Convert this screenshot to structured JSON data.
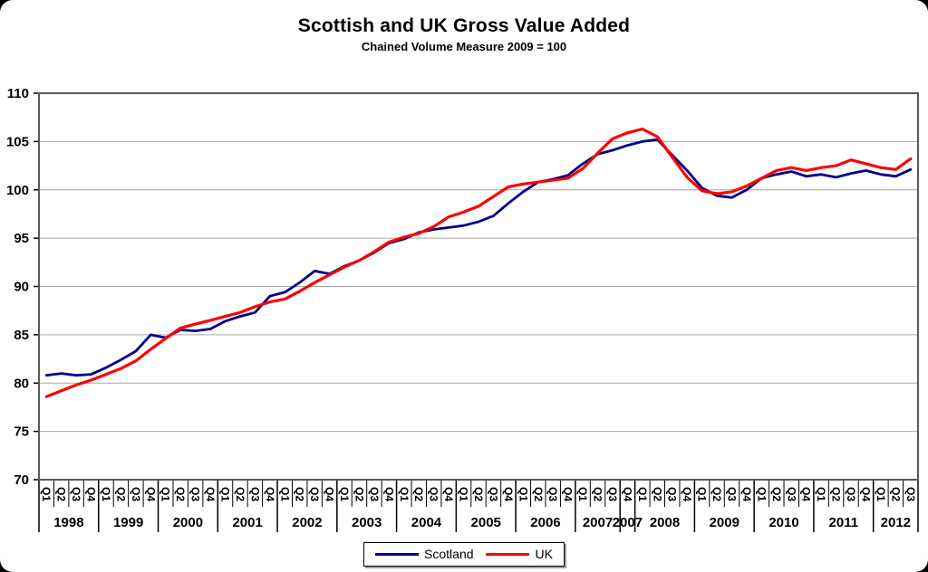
{
  "chart": {
    "title": "Scottish and UK Gross Value Added",
    "subtitle": "Chained Volume Measure 2009 = 100"
  },
  "legend": {
    "items": [
      {
        "label": "Scotland",
        "color": "#00008B"
      },
      {
        "label": "UK",
        "color": "#FF0000"
      }
    ]
  },
  "chart_data": {
    "type": "line",
    "title": "Scottish and UK Gross Value Added",
    "subtitle": "Chained Volume Measure 2009 = 100",
    "ylim": [
      70,
      110
    ],
    "yticks": [
      70,
      75,
      80,
      85,
      90,
      95,
      100,
      105,
      110
    ],
    "grid": true,
    "legend_position": "bottom-center",
    "axis_color": "#595959",
    "gridline_color": "#A6A6A6",
    "year_groups": [
      {
        "year": "1998",
        "quarters": [
          "Q1",
          "Q2",
          "Q3",
          "Q4"
        ]
      },
      {
        "year": "1999",
        "quarters": [
          "Q1",
          "Q2",
          "Q3",
          "Q4"
        ]
      },
      {
        "year": "2000",
        "quarters": [
          "Q1",
          "Q2",
          "Q3",
          "Q4"
        ]
      },
      {
        "year": "2001",
        "quarters": [
          "Q1",
          "Q2",
          "Q3",
          "Q4"
        ]
      },
      {
        "year": "2002",
        "quarters": [
          "Q1",
          "Q2",
          "Q3",
          "Q4"
        ]
      },
      {
        "year": "2003",
        "quarters": [
          "Q1",
          "Q2",
          "Q3",
          "Q4"
        ]
      },
      {
        "year": "2004",
        "quarters": [
          "Q1",
          "Q2",
          "Q3",
          "Q4"
        ]
      },
      {
        "year": "2005",
        "quarters": [
          "Q1",
          "Q2",
          "Q3",
          "Q4"
        ]
      },
      {
        "year": "2006",
        "quarters": [
          "Q1",
          "Q2",
          "Q3",
          "Q4"
        ]
      },
      {
        "year": "2007",
        "quarters": [
          "Q1",
          "Q2",
          "Q3"
        ]
      },
      {
        "year": "2007",
        "quarters": [
          "Q4"
        ]
      },
      {
        "year": "2008",
        "quarters": [
          "Q1",
          "Q2",
          "Q3",
          "Q4"
        ]
      },
      {
        "year": "2009",
        "quarters": [
          "Q1",
          "Q2",
          "Q3",
          "Q4"
        ]
      },
      {
        "year": "2010",
        "quarters": [
          "Q1",
          "Q2",
          "Q3",
          "Q4"
        ]
      },
      {
        "year": "2011",
        "quarters": [
          "Q1",
          "Q2",
          "Q3",
          "Q4"
        ]
      },
      {
        "year": "2012",
        "quarters": [
          "Q1",
          "Q2",
          "Q3"
        ]
      }
    ],
    "series": [
      {
        "name": "Scotland",
        "color": "#00008B",
        "stroke_width": 2.8,
        "values": [
          80.8,
          81.0,
          80.8,
          80.9,
          81.6,
          82.4,
          83.3,
          85.0,
          84.7,
          85.5,
          85.4,
          85.6,
          86.4,
          86.9,
          87.3,
          89.0,
          89.4,
          90.4,
          91.6,
          91.3,
          92.1,
          92.7,
          93.5,
          94.5,
          94.9,
          95.6,
          95.9,
          96.1,
          96.3,
          96.7,
          97.3,
          98.6,
          99.8,
          100.8,
          101.1,
          101.5,
          102.7,
          103.7,
          104.1,
          104.6,
          105.0,
          105.2,
          103.6,
          102.0,
          100.2,
          99.4,
          99.2,
          100.0,
          101.2,
          101.6,
          101.9,
          101.4,
          101.6,
          101.3,
          101.7,
          102.0,
          101.6,
          101.4,
          102.1
        ]
      },
      {
        "name": "UK",
        "color": "#FF0000",
        "stroke_width": 3.2,
        "values": [
          78.6,
          79.2,
          79.8,
          80.3,
          80.9,
          81.5,
          82.3,
          83.5,
          84.6,
          85.7,
          86.1,
          86.5,
          86.9,
          87.3,
          87.9,
          88.4,
          88.7,
          89.5,
          90.4,
          91.2,
          92.0,
          92.7,
          93.6,
          94.6,
          95.1,
          95.5,
          96.2,
          97.2,
          97.7,
          98.3,
          99.3,
          100.3,
          100.6,
          100.8,
          101.0,
          101.2,
          102.2,
          103.8,
          105.3,
          105.9,
          106.3,
          105.5,
          103.4,
          101.3,
          99.9,
          99.6,
          99.8,
          100.4,
          101.2,
          102.0,
          102.3,
          102.0,
          102.3,
          102.5,
          103.1,
          102.7,
          102.3,
          102.1,
          103.2
        ]
      }
    ]
  }
}
